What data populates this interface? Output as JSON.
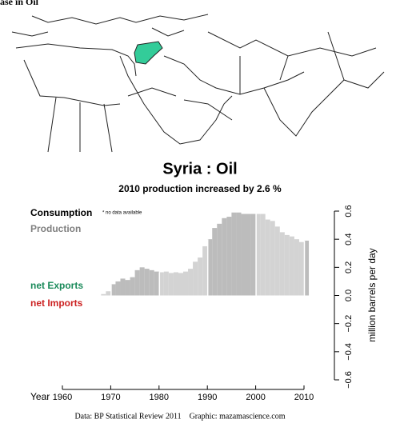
{
  "header": {
    "text": "ase in Oil"
  },
  "chart_data": {
    "type": "bar",
    "title": "Syria :  Oil",
    "subtitle": "2010 production increased by 2.6 %",
    "x_label": "Year",
    "y_label": "million barrels per day",
    "note": "* no data available",
    "legend": [
      {
        "name": "Consumption",
        "color": "#000000"
      },
      {
        "name": "Production",
        "color": "#808080"
      },
      {
        "name": "net Exports",
        "color": "#1a8a5a"
      },
      {
        "name": "net Imports",
        "color": "#cc2222"
      }
    ],
    "x": [
      1968,
      1969,
      1970,
      1971,
      1972,
      1973,
      1974,
      1975,
      1976,
      1977,
      1978,
      1979,
      1980,
      1981,
      1982,
      1983,
      1984,
      1985,
      1986,
      1987,
      1988,
      1989,
      1990,
      1991,
      1992,
      1993,
      1994,
      1995,
      1996,
      1997,
      1998,
      1999,
      2000,
      2001,
      2002,
      2003,
      2004,
      2005,
      2006,
      2007,
      2008,
      2009,
      2010
    ],
    "series": [
      {
        "name": "Production",
        "colors": [
          "#d3d3d3",
          "#bcbcbc"
        ],
        "values": [
          0.01,
          0.03,
          0.08,
          0.1,
          0.12,
          0.11,
          0.13,
          0.18,
          0.2,
          0.19,
          0.18,
          0.17,
          0.165,
          0.17,
          0.16,
          0.165,
          0.16,
          0.17,
          0.19,
          0.24,
          0.27,
          0.35,
          0.4,
          0.48,
          0.51,
          0.55,
          0.56,
          0.59,
          0.59,
          0.58,
          0.58,
          0.58,
          0.58,
          0.58,
          0.54,
          0.53,
          0.49,
          0.45,
          0.43,
          0.42,
          0.4,
          0.38,
          0.39
        ]
      }
    ],
    "xlim": [
      1960,
      2010
    ],
    "xticks": [
      1960,
      1970,
      1980,
      1990,
      2000,
      2010
    ],
    "ylim": [
      -0.6,
      0.6
    ],
    "yticks": [
      {
        "value": -0.6,
        "label": "−0.6"
      },
      {
        "value": -0.4,
        "label": "−0.4"
      },
      {
        "value": -0.2,
        "label": "−0.2"
      },
      {
        "value": 0,
        "label": "0.0"
      },
      0.2,
      0.4,
      0.6
    ],
    "footer": "Data: BP Statistical Review 2011    Graphic: mazamascience.com"
  }
}
